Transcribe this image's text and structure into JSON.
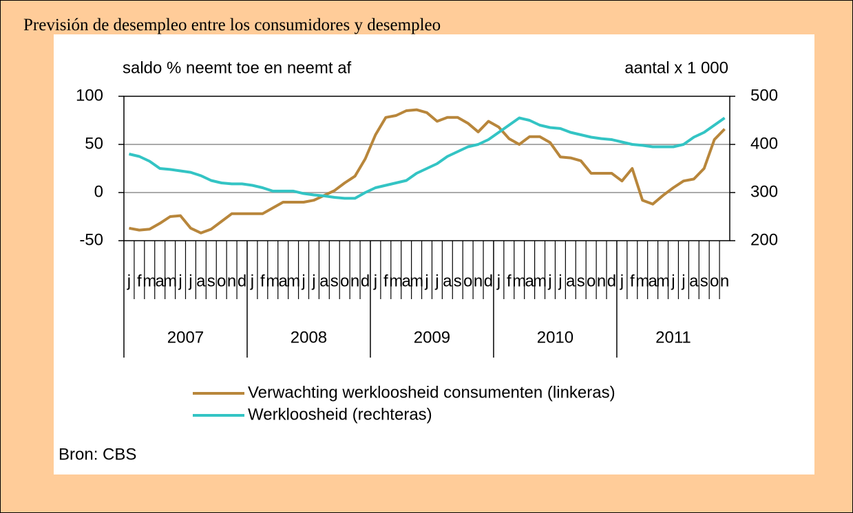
{
  "chart_data": {
    "type": "line",
    "title": "Previsión de desempleo entre los consumidores y desempleo",
    "y_label": "saldo % neemt toe en neemt af",
    "y2_label": "aantal x 1 000",
    "source": "Bron: CBS",
    "categories": [
      "j",
      "f",
      "m",
      "a",
      "m",
      "j",
      "j",
      "a",
      "s",
      "o",
      "n",
      "d",
      "j",
      "f",
      "m",
      "a",
      "m",
      "j",
      "j",
      "a",
      "s",
      "o",
      "n",
      "d",
      "j",
      "f",
      "m",
      "a",
      "m",
      "j",
      "j",
      "a",
      "s",
      "o",
      "n",
      "d",
      "j",
      "f",
      "m",
      "a",
      "m",
      "j",
      "j",
      "a",
      "s",
      "o",
      "n",
      "d",
      "j",
      "f",
      "m",
      "a",
      "m",
      "j",
      "j",
      "a",
      "s",
      "o",
      "n"
    ],
    "years": [
      "2007",
      "2008",
      "2009",
      "2010",
      "2011"
    ],
    "ylim": [
      -50,
      100
    ],
    "yticks": [
      -50,
      0,
      50,
      100
    ],
    "y2lim": [
      200,
      500
    ],
    "y2ticks": [
      200,
      300,
      400,
      500
    ],
    "grid": true,
    "series": [
      {
        "name": "Verwachting werkloosheid consumenten  (linkeras)",
        "color": "#b8863b",
        "axis": "y",
        "values": [
          -37,
          -39,
          -38,
          -32,
          -25,
          -24,
          -37,
          -42,
          -38,
          -30,
          -22,
          -22,
          -22,
          -22,
          -16,
          -10,
          -10,
          -10,
          -8,
          -3,
          2,
          10,
          17,
          35,
          60,
          78,
          80,
          85,
          86,
          83,
          74,
          78,
          78,
          72,
          63,
          74,
          68,
          56,
          50,
          58,
          58,
          52,
          37,
          36,
          33,
          20,
          20,
          20,
          12,
          25,
          -8,
          -12,
          -3,
          5,
          12,
          14,
          25,
          55,
          66
        ]
      },
      {
        "name": "Werkloosheid (rechteras)",
        "color": "#33c4c4",
        "axis": "y2",
        "values": [
          380,
          375,
          365,
          350,
          348,
          345,
          342,
          335,
          325,
          320,
          318,
          318,
          315,
          310,
          303,
          303,
          303,
          298,
          295,
          293,
          290,
          288,
          288,
          300,
          310,
          315,
          320,
          325,
          340,
          350,
          360,
          375,
          385,
          395,
          400,
          410,
          425,
          440,
          455,
          450,
          440,
          435,
          433,
          425,
          420,
          415,
          412,
          410,
          405,
          400,
          398,
          395,
          395,
          395,
          400,
          415,
          425,
          440,
          455
        ]
      }
    ]
  }
}
